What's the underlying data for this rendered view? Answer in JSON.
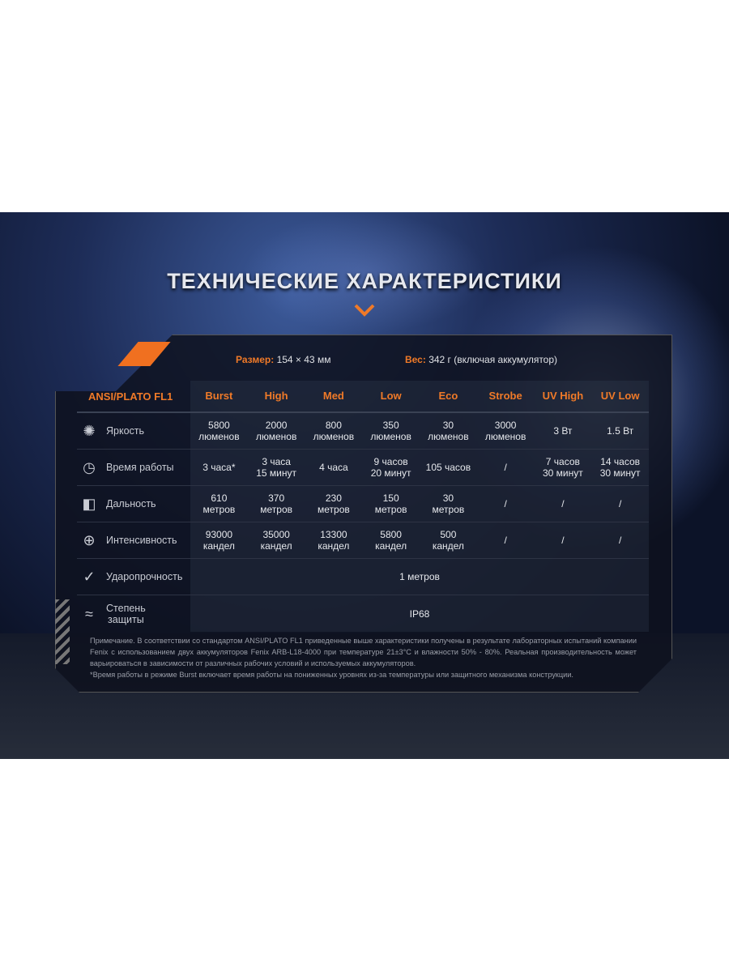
{
  "title": "ТЕХНИЧЕСКИЕ ХАРАКТЕРИСТИКИ",
  "accent": "#f07a28",
  "size": {
    "label": "Размер:",
    "value": "154 × 43 мм"
  },
  "weight": {
    "label": "Вес:",
    "value": "342 г (включая аккумулятор)"
  },
  "table": {
    "header": "ANSI/PLATO FL1",
    "modes": [
      "Burst",
      "High",
      "Med",
      "Low",
      "Eco",
      "Strobe",
      "UV High",
      "UV Low"
    ],
    "rows": [
      {
        "icon": "brightness-icon",
        "glyph": "✺",
        "label": "Яркость",
        "values": [
          "5800\nлюменов",
          "2000\nлюменов",
          "800\nлюменов",
          "350\nлюменов",
          "30\nлюменов",
          "3000\nлюменов",
          "3 Вт",
          "1.5 Вт"
        ]
      },
      {
        "icon": "clock-icon",
        "glyph": "◷",
        "label": "Время работы",
        "values": [
          "3 часа*",
          "3 часа\n15 минут",
          "4 часа",
          "9 часов\n20 минут",
          "105 часов",
          "/",
          "7 часов\n30 минут",
          "14 часов\n30 минут"
        ]
      },
      {
        "icon": "beam-distance-icon",
        "glyph": "◧",
        "label": "Дальность",
        "values": [
          "610\nметров",
          "370\nметров",
          "230\nметров",
          "150\nметров",
          "30\nметров",
          "/",
          "/",
          "/"
        ]
      },
      {
        "icon": "target-icon",
        "glyph": "⊕",
        "label": "Интенсивность",
        "values": [
          "93000\nкандел",
          "35000\nкандел",
          "13300\nкандел",
          "5800\nкандел",
          "500\nкандел",
          "/",
          "/",
          "/"
        ]
      }
    ],
    "impact": {
      "icon": "impact-icon",
      "glyph": "✓",
      "label": "Ударопрочность",
      "value": "1 метров"
    },
    "protection": {
      "icon": "water-icon",
      "glyph": "≈",
      "label": "Степень\nзащиты",
      "value": "IP68"
    }
  },
  "notes": [
    "Примечание. В соответствии со стандартом ANSI/PLATO FL1 приведенные выше характеристики получены в результате лабораторных испытаний компании Fenix  с использованием двух аккумуляторов Fenix ARB-L18-4000 при температуре 21±3°C и влажности 50% - 80%. Реальная производительность может варьироваться в зависимости от различных рабочих условий и используемых аккумуляторов.",
    "*Время работы в режиме Burst включает время работы на пониженных уровнях из-за температуры или защитного механизма конструкции."
  ]
}
